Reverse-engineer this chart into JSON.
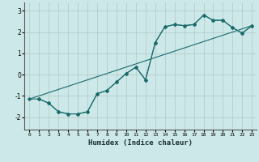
{
  "title": "",
  "xlabel": "Humidex (Indice chaleur)",
  "ylabel": "",
  "background_color": "#cde8e8",
  "grid_color": "#b0c8c8",
  "line_color": "#1a6b6b",
  "xlim": [
    -0.5,
    23.5
  ],
  "ylim": [
    -2.6,
    3.4
  ],
  "yticks": [
    -2,
    -1,
    0,
    1,
    2,
    3
  ],
  "xticks": [
    0,
    1,
    2,
    3,
    4,
    5,
    6,
    7,
    8,
    9,
    10,
    11,
    12,
    13,
    14,
    15,
    16,
    17,
    18,
    19,
    20,
    21,
    22,
    23
  ],
  "line1_x": [
    0,
    1,
    2,
    3,
    4,
    5,
    6,
    7,
    8,
    9,
    10,
    11,
    12,
    13,
    14,
    15,
    16,
    17,
    18,
    19,
    20,
    21,
    22,
    23
  ],
  "line1_y": [
    -1.15,
    -1.15,
    -1.35,
    -1.75,
    -1.85,
    -1.85,
    -1.75,
    -0.9,
    -0.75,
    -0.35,
    0.05,
    0.35,
    -0.25,
    1.5,
    2.25,
    2.35,
    2.3,
    2.35,
    2.8,
    2.55,
    2.55,
    2.2,
    1.95,
    2.3
  ],
  "line2_x": [
    0,
    23
  ],
  "line2_y": [
    -1.15,
    2.3
  ],
  "line3_x": [
    1,
    2,
    3,
    4,
    5,
    6,
    7,
    8,
    9,
    10,
    11,
    12,
    13,
    14,
    15,
    16,
    17,
    18,
    19,
    20,
    21,
    22,
    23
  ],
  "line3_y": [
    -1.15,
    -1.35,
    -1.75,
    -1.85,
    -1.85,
    -1.75,
    -0.9,
    -0.75,
    -0.35,
    0.05,
    0.35,
    -0.25,
    1.5,
    2.25,
    2.35,
    2.3,
    2.35,
    2.8,
    2.55,
    2.55,
    2.2,
    1.95,
    2.3
  ]
}
